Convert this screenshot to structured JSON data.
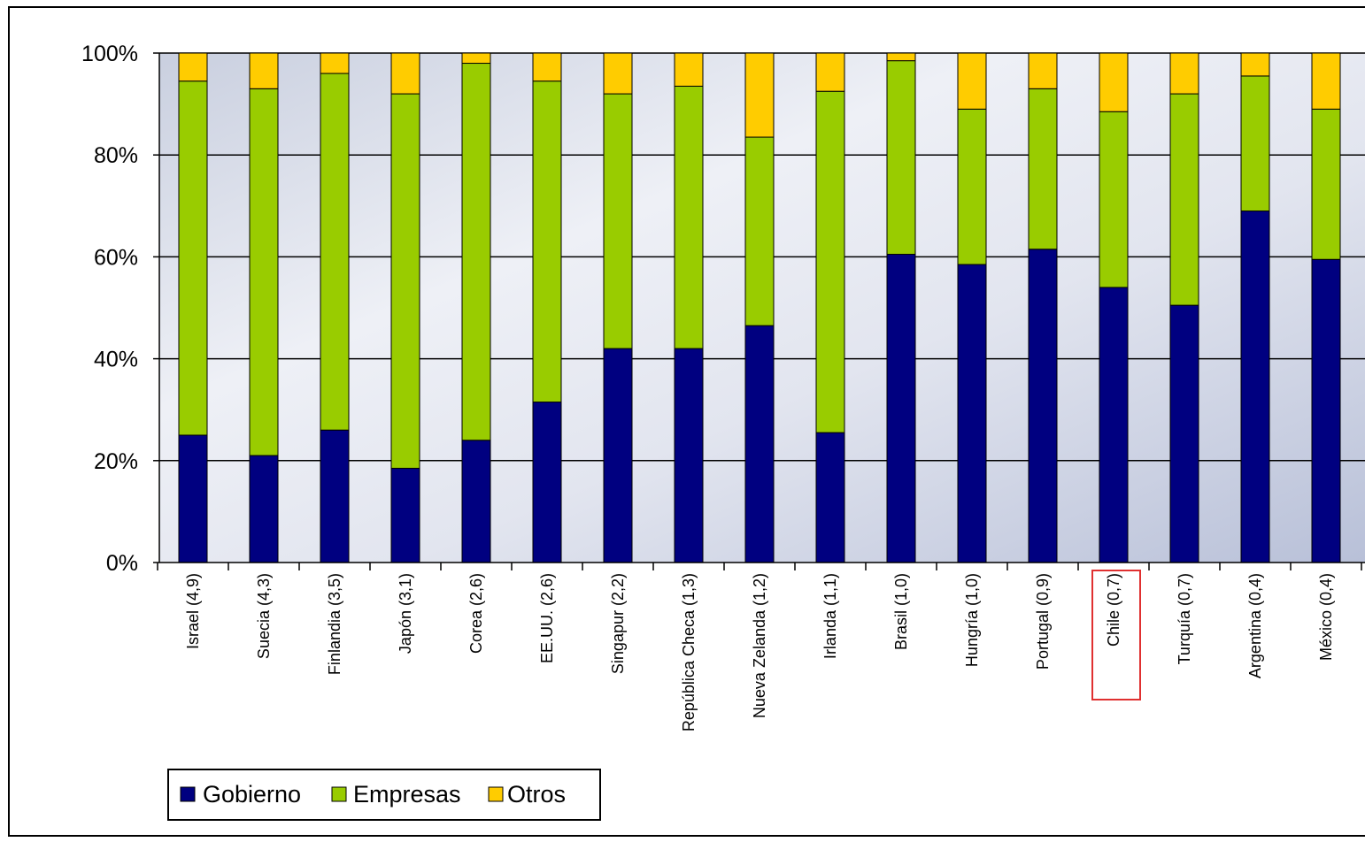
{
  "chart_data": {
    "type": "bar",
    "stacked": true,
    "normalized_percent": true,
    "categories": [
      "Israel (4,9)",
      "Suecia (4,3)",
      "Finlandia (3,5)",
      "Japón (3,1)",
      "Corea (2,6)",
      "EE.UU. (2,6)",
      "Singapur (2,2)",
      "República Checa (1,3)",
      "Nueva Zelanda (1,2)",
      "Irlanda (1,1)",
      "Brasil (1,0)",
      "Hungría (1,0)",
      "Portugal (0,9)",
      "Chile (0,7)",
      "Turquía (0,7)",
      "Argentina (0,4)",
      "México (0,4)"
    ],
    "series": [
      {
        "name": "Gobierno",
        "color": "#000080",
        "values": [
          25,
          21,
          26,
          18.5,
          24,
          31.5,
          42,
          42,
          46.5,
          25.5,
          60.5,
          58.5,
          61.5,
          54,
          50.5,
          69,
          59.5
        ]
      },
      {
        "name": "Empresas",
        "color": "#99CC00",
        "values": [
          69.5,
          72,
          70,
          73.5,
          74,
          63,
          50,
          51.5,
          37,
          67,
          38,
          30.5,
          31.5,
          34.5,
          41.5,
          26.5,
          29.5
        ]
      },
      {
        "name": "Otros",
        "color": "#FFCC00",
        "values": [
          5.5,
          7,
          4,
          8,
          2,
          5.5,
          8,
          6.5,
          16.5,
          7.5,
          1.5,
          11,
          7,
          11.5,
          8,
          4.5,
          11
        ]
      }
    ],
    "y_ticks": [
      "0%",
      "20%",
      "40%",
      "60%",
      "80%",
      "100%"
    ],
    "ylim": [
      0,
      100
    ],
    "grid": true,
    "highlighted_category": "Chile (0,7)",
    "highlight_color": "#E03030",
    "legend_position": "bottom-left",
    "plot_background": "#DCE0EC"
  }
}
